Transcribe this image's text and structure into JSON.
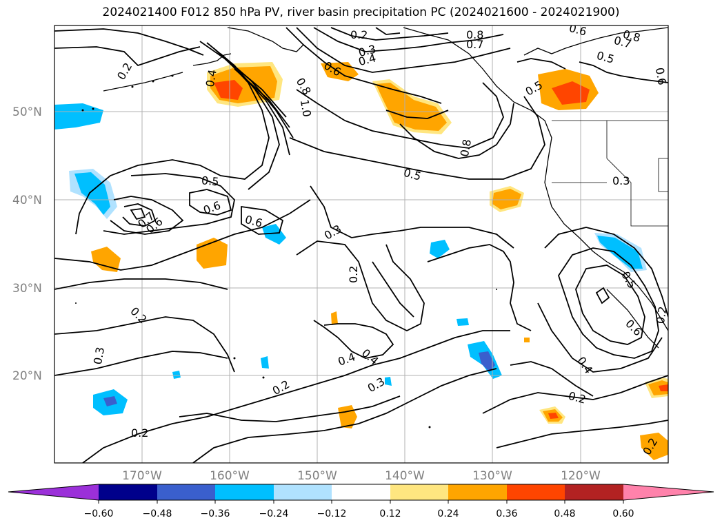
{
  "title": "2024021400 F012 850 hPa PV, river basin precipitation PC (2024021600 - 2024021900)",
  "map": {
    "lon_labels": [
      "170°W",
      "160°W",
      "150°W",
      "140°W",
      "130°W",
      "120°W"
    ],
    "lat_labels": [
      "50°N",
      "40°N",
      "30°N",
      "20°N"
    ],
    "contour_labels": [
      "0.2",
      "0.4",
      "0.8",
      "1.0",
      "0.6",
      "0.4",
      "0.3",
      "0.2",
      "0.8",
      "0.7",
      "0.6",
      "0.5",
      "0.8",
      "0.6",
      "0.7",
      "0.5",
      "0.8",
      "0.5",
      "0.3",
      "0.5",
      "0.6",
      "0.7",
      "0.6",
      "0.6",
      "0.3",
      "0.2",
      "0.2",
      "0.4",
      "0.4",
      "0.3",
      "0.2",
      "0.3",
      "0.2",
      "0.2",
      "0.4",
      "0.6",
      "0.5",
      "0.2",
      "0.2"
    ],
    "colors": {
      "coast": "#000000",
      "grid": "#b0b0b0",
      "pv_contour": "#000000"
    }
  },
  "colorbar": {
    "tick_labels": [
      "−0.60",
      "−0.48",
      "−0.36",
      "−0.24",
      "−0.12",
      "0.12",
      "0.24",
      "0.36",
      "0.48",
      "0.60"
    ],
    "colors": [
      "#9b30d9",
      "#00008b",
      "#3a5fcd",
      "#00bfff",
      "#b0e2ff",
      "#ffffff",
      "#ffe680",
      "#ffa500",
      "#ff4500",
      "#b22222",
      "#ff82ab"
    ]
  }
}
